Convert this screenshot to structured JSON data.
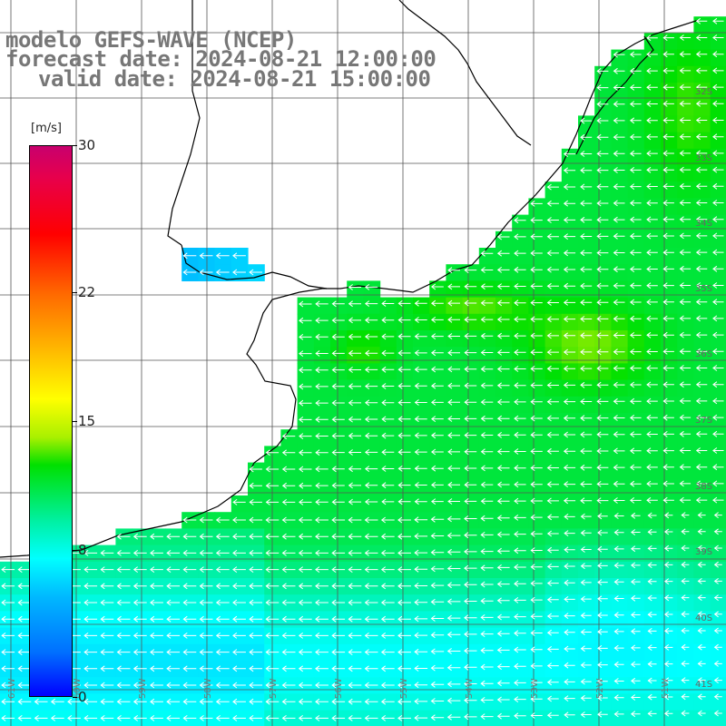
{
  "header": {
    "line1": "modelo GEFS-WAVE (NCEP)",
    "line2": "forecast date: 2024-08-21 12:00:00",
    "line3": "valid date: 2024-08-21 15:00:00"
  },
  "colorbar": {
    "unit": "[m/s]",
    "ticks": [
      {
        "label": "30",
        "value": 30
      },
      {
        "label": "22",
        "value": 22
      },
      {
        "label": "15",
        "value": 15
      },
      {
        "label": "8",
        "value": 8
      },
      {
        "label": "0",
        "value": 0
      }
    ],
    "range": [
      0,
      30
    ]
  },
  "map": {
    "lat_labels": [
      "32S",
      "33S",
      "34S",
      "35S",
      "36S",
      "37S",
      "38S",
      "39S",
      "40S",
      "41S"
    ],
    "lon_labels": [
      "61W",
      "60W",
      "59W",
      "58W",
      "57W",
      "56W",
      "55W",
      "54W",
      "53W",
      "52W",
      "51W"
    ],
    "grid_color": "#555555",
    "coast_color": "#000000",
    "arrow_color": "#ffffff"
  }
}
